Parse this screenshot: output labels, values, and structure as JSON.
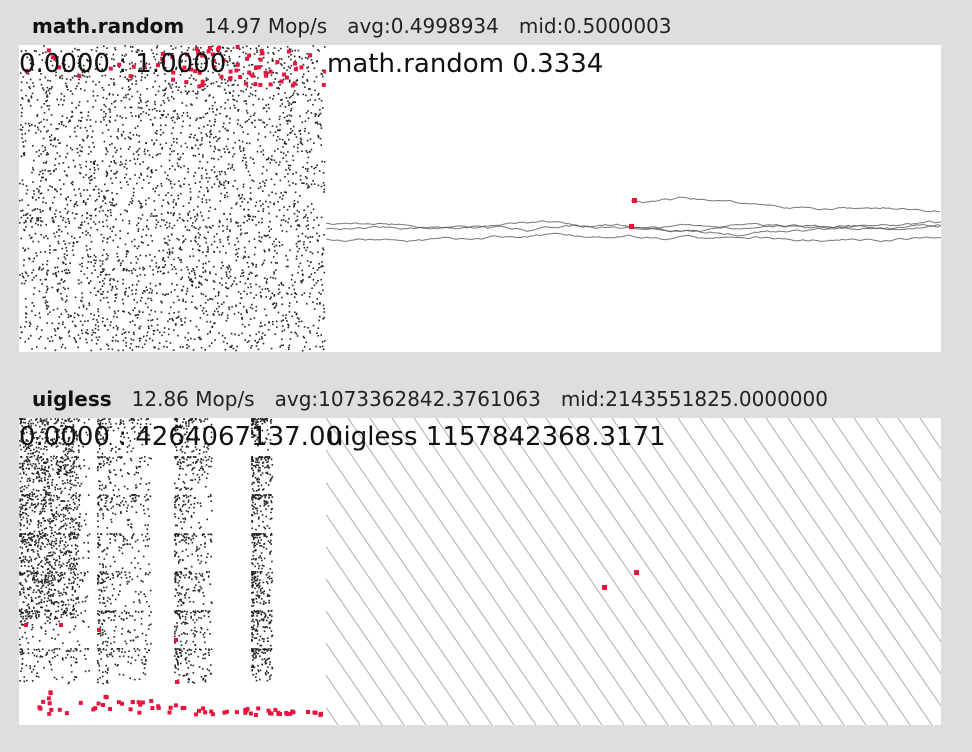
{
  "generators": [
    {
      "id": "math-random",
      "name": "math.random",
      "speed": "14.97 Mop/s",
      "avg": "avg:0.4998934",
      "mid": "mid:0.5000003",
      "range_label": "0.0000 : 1.0000",
      "walk_label": "math.random 0.3334"
    },
    {
      "id": "uigless",
      "name": "uigless",
      "speed": "12.86 Mop/s",
      "avg": "avg:1073362842.3761063",
      "mid": "mid:2143551825.0000000",
      "range_label": "0.0000 : 4264067137.00",
      "walk_label": "uigless 1157842368.3171"
    }
  ],
  "chart_data": [
    {
      "type": "scatter",
      "title": "math.random",
      "description_range": [
        0,
        1
      ],
      "series": [
        {
          "name": "math.random",
          "color": "#222222"
        },
        {
          "name": "highlight",
          "color": "#e8143c"
        }
      ]
    },
    {
      "type": "scatter",
      "title": "uigless",
      "description_range": [
        0,
        4264067137
      ],
      "series": [
        {
          "name": "uigless",
          "color": "#222222"
        },
        {
          "name": "highlight",
          "color": "#e8143c"
        }
      ]
    }
  ],
  "colors": {
    "dot": "#222222",
    "accent": "#e8143c",
    "walk_line": "#555555",
    "background": "#dedede"
  }
}
